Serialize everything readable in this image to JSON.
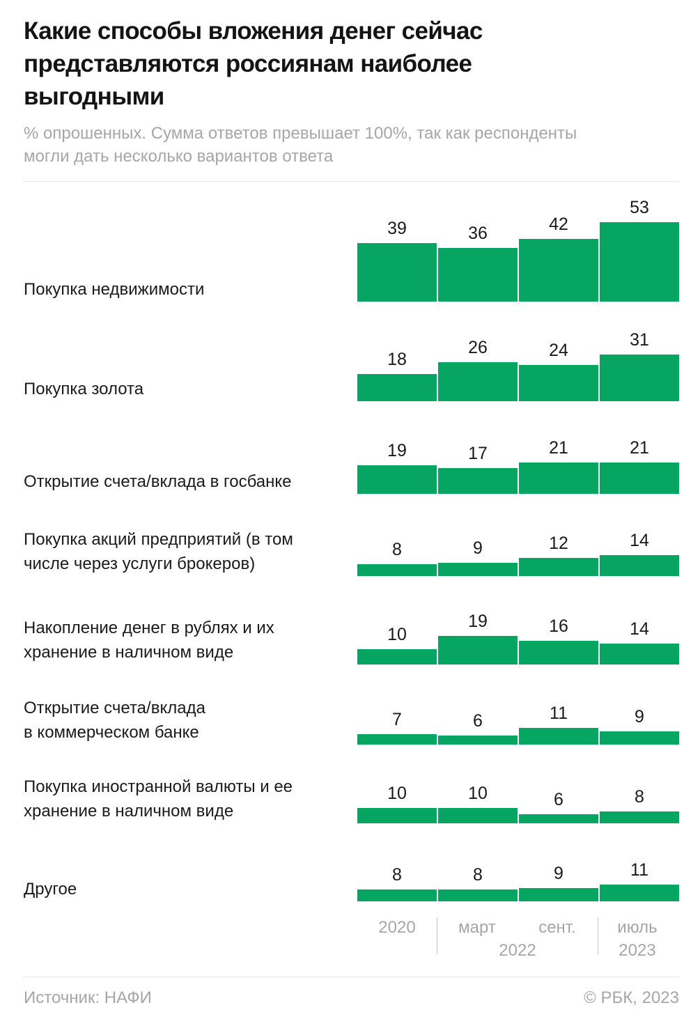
{
  "header": {
    "title": "Какие способы вложения денег сейчас\nпредставляются россиянам наиболее\nвыгодными",
    "subtitle": "% опрошенных. Сумма ответов превышает 100%, так как респонденты\nмогли дать несколько вариантов ответа"
  },
  "chart_data": {
    "type": "bar",
    "title": "Какие способы вложения денег сейчас представляются россиянам наиболее выгодными",
    "value_unit": "% опрошенных",
    "note": "Сумма ответов превышает 100%, так как респонденты могли дать несколько вариантов ответа",
    "categories": [
      "2020",
      "март 2022",
      "сент. 2022",
      "июль 2023"
    ],
    "rows": [
      {
        "label": "Покупка недвижимости",
        "values": [
          39,
          36,
          42,
          53
        ]
      },
      {
        "label": "Покупка золота",
        "values": [
          18,
          26,
          24,
          31
        ]
      },
      {
        "label": "Открытие счета/вклада в госбанке",
        "values": [
          19,
          17,
          21,
          21
        ]
      },
      {
        "label": "Покупка акций предприятий (в том\nчисле через услуги брокеров)",
        "values": [
          8,
          9,
          12,
          14
        ]
      },
      {
        "label": "Накопление денег в рублях и их\nхранение в наличном виде",
        "values": [
          10,
          19,
          16,
          14
        ]
      },
      {
        "label": "Открытие счета/вклада\nв коммерческом банке",
        "values": [
          7,
          6,
          11,
          9
        ]
      },
      {
        "label": "Покупка иностранной валюты и ее\nхранение в наличном виде",
        "values": [
          10,
          10,
          6,
          8
        ]
      },
      {
        "label": "Другое",
        "values": [
          8,
          8,
          9,
          11
        ]
      }
    ],
    "axis": {
      "col_labels": [
        "2020",
        "март",
        "сент.",
        "июль"
      ],
      "year_labels": [
        "2022",
        "2023"
      ]
    },
    "value_labels_shown": true,
    "legend_position": "none",
    "grid": false
  },
  "footer": {
    "source": "Источник: НАФИ",
    "copyright": "© РБК, 2023"
  },
  "colors": {
    "bar": "#06a562",
    "title_text": "#141414",
    "label_text": "#1a1a1a",
    "muted_text": "#a6a6a6",
    "divider": "#e7e7e7",
    "axis_separator": "#c4c4c4"
  }
}
